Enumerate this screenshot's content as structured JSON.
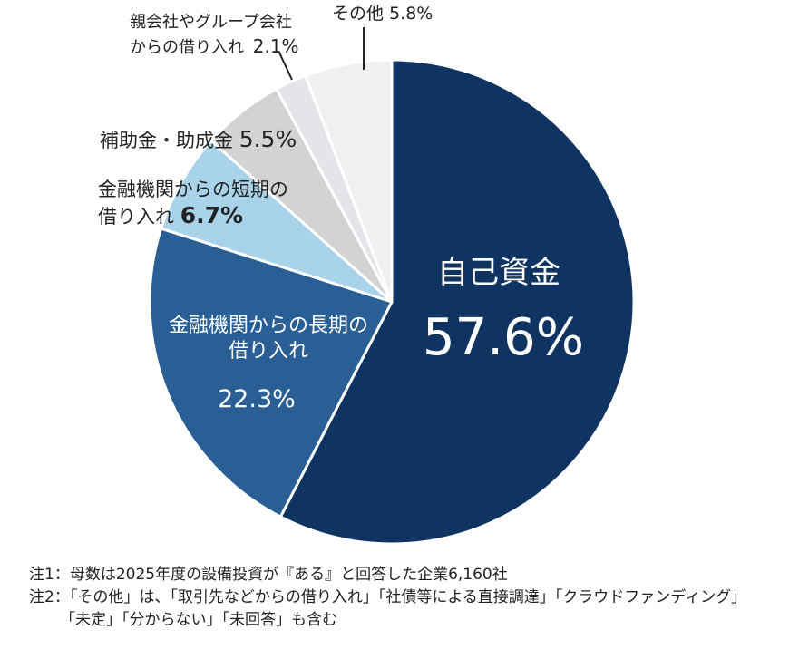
{
  "chart_data": {
    "type": "pie",
    "start": "12 o'clock, clockwise",
    "slices": [
      {
        "label": "自己資金",
        "value": 57.6,
        "display": "57.6%",
        "color": "#0f3461"
      },
      {
        "label": "金融機関からの長期の借り入れ",
        "value": 22.3,
        "display": "22.3%",
        "color": "#2a5f96"
      },
      {
        "label": "金融機関からの短期の借り入れ",
        "value": 6.7,
        "display": "6.7%",
        "color": "#a9d3ea"
      },
      {
        "label": "補助金・助成金",
        "value": 5.5,
        "display": "5.5%",
        "color": "#d3d3d3"
      },
      {
        "label": "親会社やグループ会社からの借り入れ",
        "value": 2.1,
        "display": "2.1%",
        "color": "#e3e5e8"
      },
      {
        "label": "その他",
        "value": 5.8,
        "display": "5.8%",
        "color": "#f0f0f1"
      }
    ]
  },
  "labels": {
    "own": {
      "name": "自己資金",
      "pct": "57.6%"
    },
    "long": {
      "line1": "金融機関からの長期の",
      "line2": "借り入れ",
      "pct": "22.3%"
    },
    "short": {
      "line1": "金融機関からの短期の",
      "line2": "借り入れ",
      "pct": "6.7%"
    },
    "subsidy": {
      "name": "補助金・助成金",
      "pct": "5.5%"
    },
    "group": {
      "line1": "親会社やグループ会社",
      "line2": "からの借り入れ",
      "pct": "2.1%"
    },
    "other": {
      "name": "その他",
      "pct": "5.8%"
    }
  },
  "notes": {
    "note1": "注1：母数は2025年度の設備投資が『ある』と回答した企業6,160社",
    "note2": "注2：「その他」は、「取引先などからの借り入れ」「社債等による直接調達」「クラウドファンディング」",
    "note2_cont": "「未定」「分からない」「未回答」も含む"
  }
}
